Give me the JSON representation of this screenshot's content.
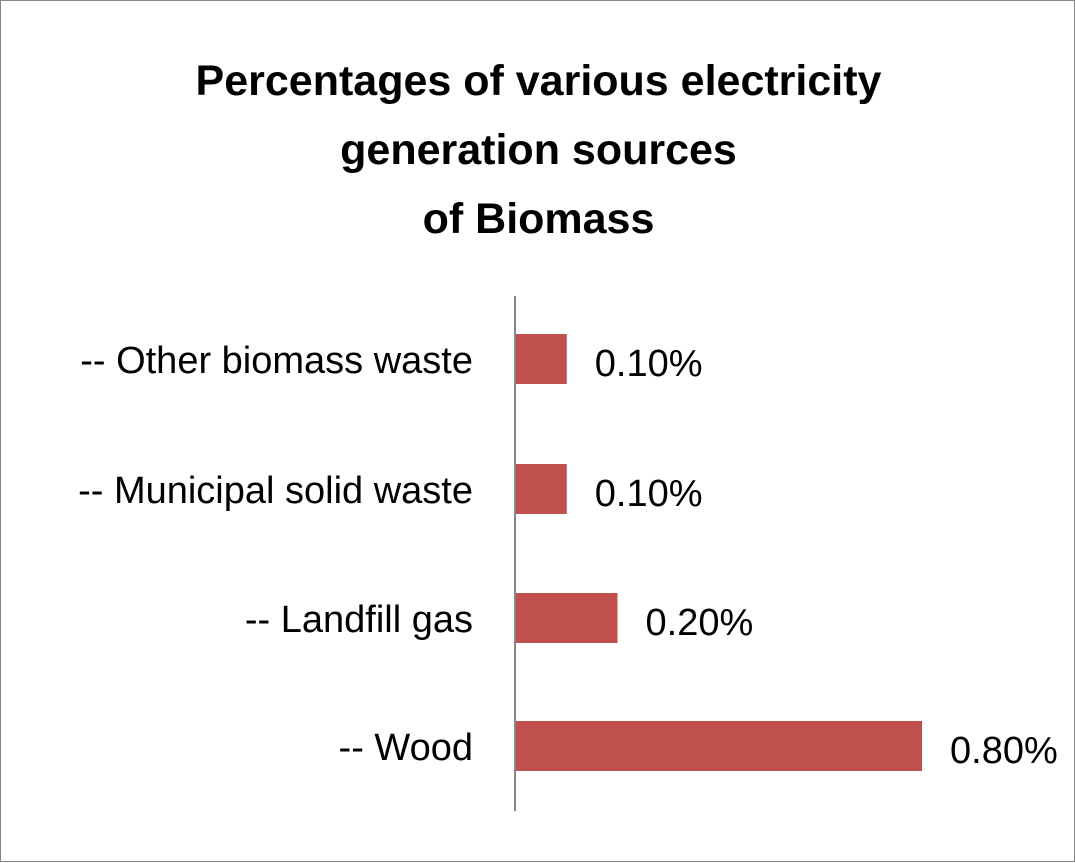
{
  "chart_data": {
    "type": "bar",
    "orientation": "horizontal",
    "title_lines": [
      "Percentages of various electricity",
      "generation sources",
      "of Biomass"
    ],
    "categories": [
      "-- Other biomass waste",
      "-- Municipal solid waste",
      "-- Landfill gas",
      "-- Wood"
    ],
    "values": [
      0.1,
      0.1,
      0.2,
      0.8
    ],
    "data_labels": [
      "0.10%",
      "0.10%",
      "0.20%",
      "0.80%"
    ],
    "value_unit": "%",
    "xlim": [
      0,
      0.8
    ],
    "xlabel": "",
    "ylabel": "",
    "grid": false,
    "legend": "none",
    "bar_color": "#C0504D"
  }
}
